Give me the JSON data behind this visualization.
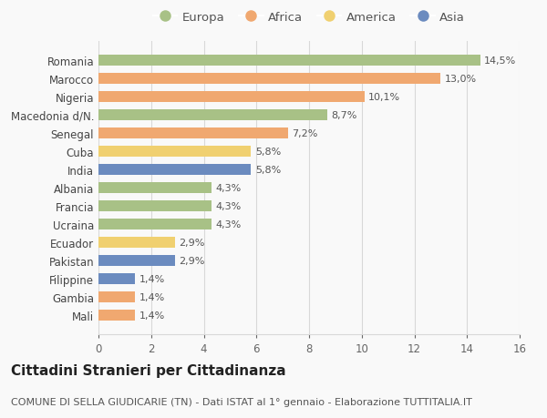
{
  "countries": [
    "Romania",
    "Marocco",
    "Nigeria",
    "Macedonia d/N.",
    "Senegal",
    "Cuba",
    "India",
    "Albania",
    "Francia",
    "Ucraina",
    "Ecuador",
    "Pakistan",
    "Filippine",
    "Gambia",
    "Mali"
  ],
  "values": [
    14.5,
    13.0,
    10.1,
    8.7,
    7.2,
    5.8,
    5.8,
    4.3,
    4.3,
    4.3,
    2.9,
    2.9,
    1.4,
    1.4,
    1.4
  ],
  "labels": [
    "14,5%",
    "13,0%",
    "10,1%",
    "8,7%",
    "7,2%",
    "5,8%",
    "5,8%",
    "4,3%",
    "4,3%",
    "4,3%",
    "2,9%",
    "2,9%",
    "1,4%",
    "1,4%",
    "1,4%"
  ],
  "continents": [
    "Europa",
    "Africa",
    "Africa",
    "Europa",
    "Africa",
    "America",
    "Asia",
    "Europa",
    "Europa",
    "Europa",
    "America",
    "Asia",
    "Asia",
    "Africa",
    "Africa"
  ],
  "continent_colors": {
    "Europa": "#a8c186",
    "Africa": "#f0a870",
    "America": "#f0d070",
    "Asia": "#6b8bbf"
  },
  "legend_order": [
    "Europa",
    "Africa",
    "America",
    "Asia"
  ],
  "title": "Cittadini Stranieri per Cittadinanza",
  "subtitle": "COMUNE DI SELLA GIUDICARIE (TN) - Dati ISTAT al 1° gennaio - Elaborazione TUTTITALIA.IT",
  "xlim": [
    0,
    16
  ],
  "xticks": [
    0,
    2,
    4,
    6,
    8,
    10,
    12,
    14,
    16
  ],
  "background_color": "#f9f9f9",
  "grid_color": "#d8d8d8",
  "bar_height": 0.62,
  "title_fontsize": 11,
  "subtitle_fontsize": 8,
  "label_fontsize": 8,
  "tick_fontsize": 8.5,
  "legend_fontsize": 9.5
}
